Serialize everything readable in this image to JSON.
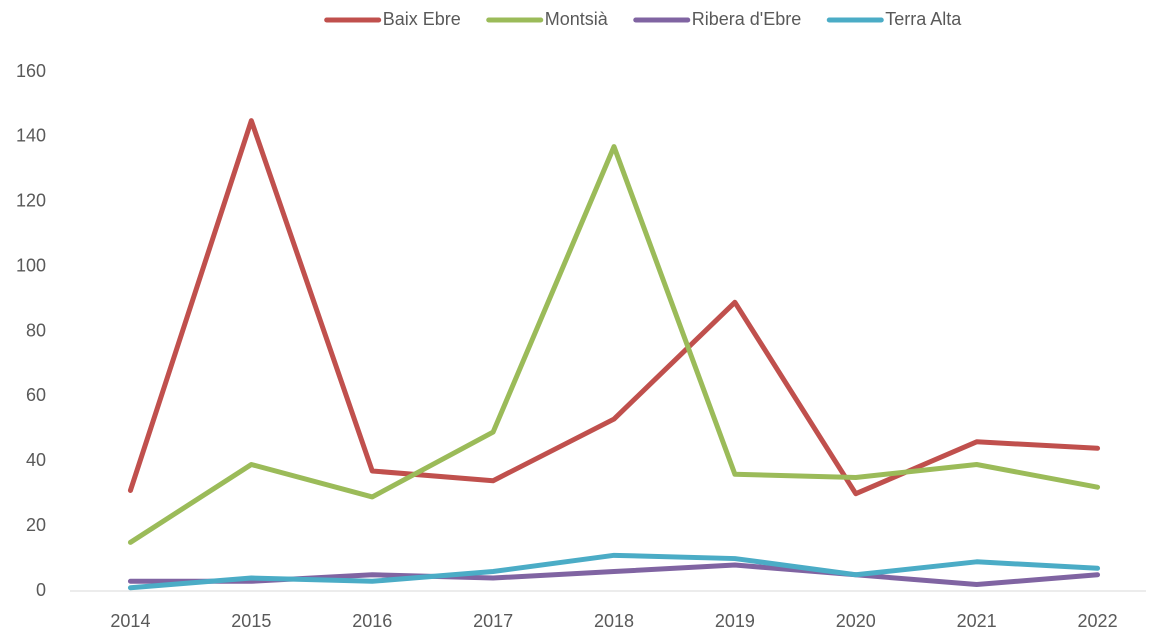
{
  "chart_data": {
    "type": "line",
    "categories": [
      "2014",
      "2015",
      "2016",
      "2017",
      "2018",
      "2019",
      "2020",
      "2021",
      "2022"
    ],
    "series": [
      {
        "name": "Baix Ebre",
        "color": "#c0504d",
        "values": [
          31,
          145,
          37,
          34,
          53,
          89,
          30,
          46,
          44
        ]
      },
      {
        "name": "Montsià",
        "color": "#9bbb59",
        "values": [
          15,
          39,
          29,
          49,
          137,
          36,
          35,
          39,
          32
        ]
      },
      {
        "name": "Ribera d'Ebre",
        "color": "#8064a2",
        "values": [
          3,
          3,
          5,
          4,
          6,
          8,
          5,
          2,
          5
        ]
      },
      {
        "name": "Terra Alta",
        "color": "#4bacc6",
        "values": [
          1,
          4,
          3,
          6,
          11,
          10,
          5,
          9,
          7
        ]
      }
    ],
    "ylim": [
      0,
      160
    ],
    "yticks": [
      0,
      20,
      40,
      60,
      80,
      100,
      120,
      140,
      160
    ],
    "legend": "top",
    "grid": false
  }
}
